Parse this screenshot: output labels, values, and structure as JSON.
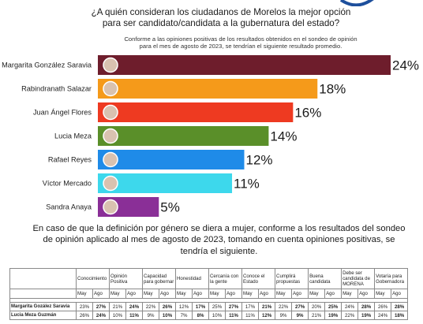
{
  "header": {
    "question": "¿A quién consideran los ciudadanos de Morelos la mejor opción para ser candidato/candidata a la gubernatura del estado?",
    "subtitle": "Conforme a las opiniones positivas de los resultados obtenidos en el sondeo de opinión para el mes de agosto de 2023, se tendrían el siguiente resultado promedio."
  },
  "chart_data": {
    "type": "bar",
    "orientation": "horizontal",
    "categories": [
      "Margarita González Saravia",
      "Rabindranath Salazar",
      "Juan Ángel Flores",
      "Lucia Meza",
      "Rafael Reyes",
      "Víctor Mercado",
      "Sandra Anaya"
    ],
    "values": [
      24,
      18,
      16,
      14,
      12,
      11,
      5
    ],
    "value_labels": [
      "24%",
      "18%",
      "16%",
      "14%",
      "12%",
      "11%",
      "5%"
    ],
    "colors": [
      "#6e1d2c",
      "#f59a1a",
      "#ee3a21",
      "#5a8f29",
      "#1f8be8",
      "#3dd8ec",
      "#8a2f97"
    ],
    "xlim": [
      0,
      24
    ],
    "grid": false,
    "legend": "none"
  },
  "section2": {
    "question": "En caso de que la definición por género se diera a mujer, conforme a los resultados del sondeo de opinión aplicado al mes de agosto de 2023, tomando en cuenta opiniones positivas, se tendría el siguiente."
  },
  "table": {
    "columns": [
      "Conocimiento",
      "Opinión Positiva",
      "Capacidad para gobernar",
      "Honestidad",
      "Cercanía con la gente",
      "Conoce el Estado",
      "Cumplirá propuestas",
      "Buena candidata",
      "Debe ser candidata de MORENA",
      "Votaría para Gobernadora"
    ],
    "subcolumns": [
      "May",
      "Ago"
    ],
    "rows": [
      {
        "name": "Margarita Gozález Saravia",
        "values": [
          "23%",
          "27%",
          "21%",
          "24%",
          "22%",
          "26%",
          "12%",
          "17%",
          "25%",
          "27%",
          "17%",
          "21%",
          "22%",
          "27%",
          "20%",
          "25%",
          "24%",
          "28%",
          "26%",
          "28%"
        ]
      },
      {
        "name": "Lucia Meza Guzmán",
        "values": [
          "26%",
          "24%",
          "10%",
          "11%",
          "9%",
          "10%",
          "7%",
          "8%",
          "10%",
          "11%",
          "11%",
          "12%",
          "9%",
          "9%",
          "21%",
          "19%",
          "22%",
          "19%",
          "24%",
          "18%"
        ]
      }
    ]
  }
}
